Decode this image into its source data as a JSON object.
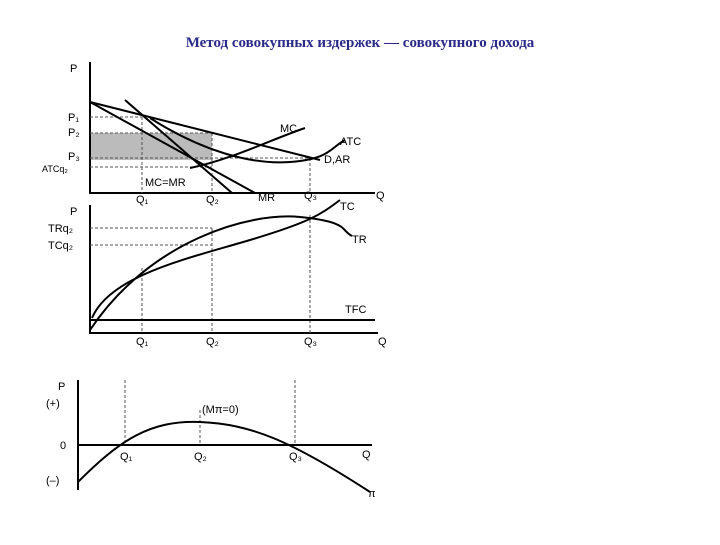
{
  "title": "Метод совокупных издержек — совокупного дохода",
  "panels": [
    {
      "labels": [
        "P",
        "P₁",
        "P₂",
        "P₃",
        "ATCq₂",
        "MC",
        "ATC",
        "D,AR",
        "MC=MR",
        "MR",
        "Q₁",
        "Q₂",
        "Q₃",
        "Q"
      ]
    },
    {
      "labels": [
        "P",
        "TRq₂",
        "TCq₂",
        "TC",
        "TR",
        "TFC",
        "Q₁",
        "Q₂",
        "Q₃",
        "Q"
      ]
    },
    {
      "labels": [
        "P",
        "(+)",
        "0",
        "(–)",
        "(Mπ=0)",
        "Q₁",
        "Q₂",
        "Q₃",
        "Q",
        "π"
      ]
    }
  ]
}
